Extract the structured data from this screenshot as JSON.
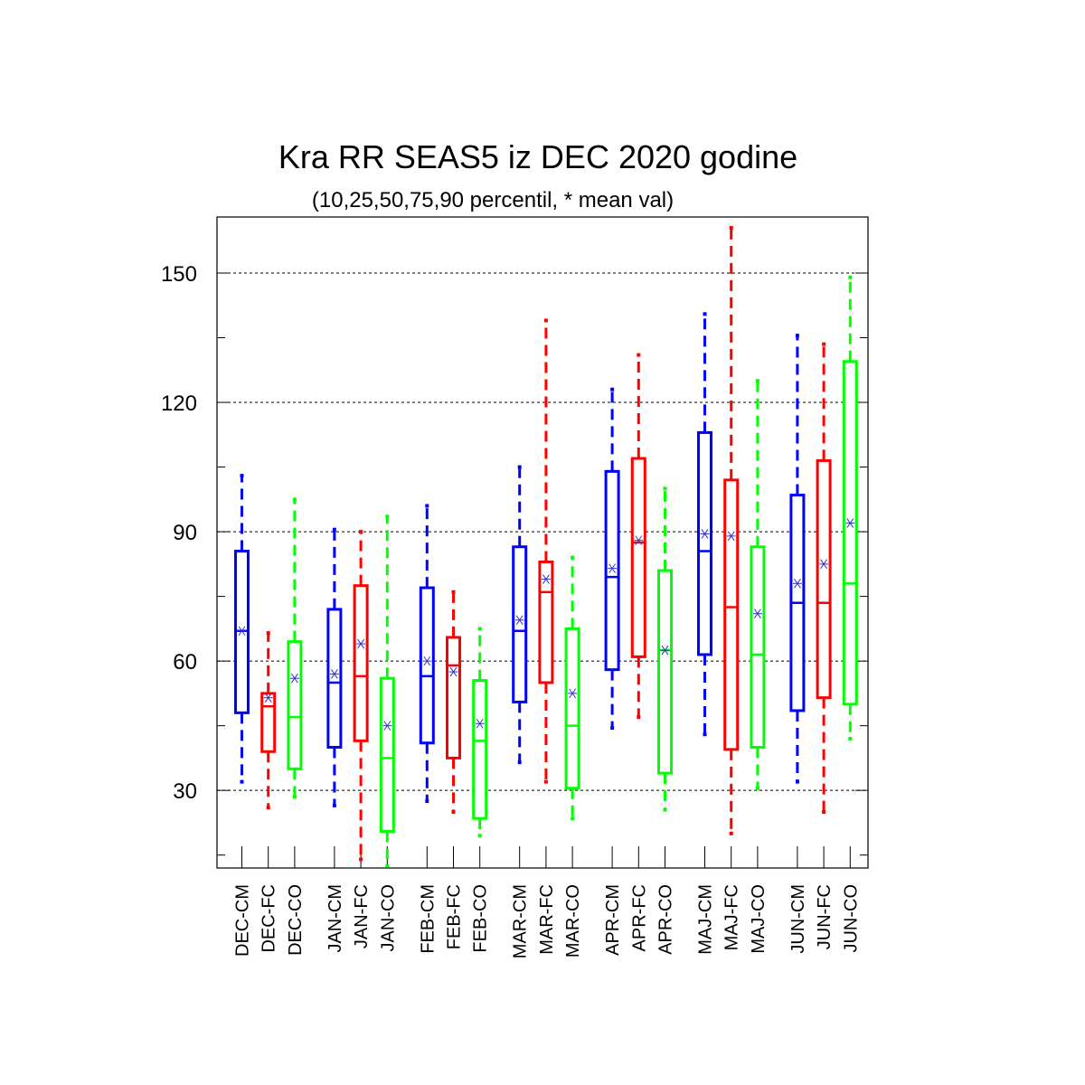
{
  "chart_data": {
    "type": "box",
    "title": "Kra RR SEAS5 iz DEC 2020 godine",
    "subtitle": "(10,25,50,75,90 percentil, * mean val)",
    "xlabel": "",
    "ylabel": "",
    "ylim": [
      12,
      163
    ],
    "yticks": [
      30,
      60,
      90,
      120,
      150
    ],
    "grid": "horizontal dashed at major ticks",
    "colors": {
      "CM": "#0000ff",
      "FC": "#ff0000",
      "CO": "#00ff00",
      "mean_marker": "#3333cc"
    },
    "boxes": [
      {
        "label": "DEC-CM",
        "type": "CM",
        "p10": 32,
        "p25": 48,
        "median": 67,
        "p75": 85.5,
        "p90": 103,
        "mean": 67
      },
      {
        "label": "DEC-FC",
        "type": "FC",
        "p10": 26,
        "p25": 39,
        "median": 49.5,
        "p75": 52.5,
        "p90": 66.5,
        "mean": 51.5
      },
      {
        "label": "DEC-CO",
        "type": "CO",
        "p10": 28.5,
        "p25": 35,
        "median": 47,
        "p75": 64.5,
        "p90": 97.5,
        "mean": 56
      },
      {
        "label": "JAN-CM",
        "type": "CM",
        "p10": 26.5,
        "p25": 40,
        "median": 55,
        "p75": 72,
        "p90": 90.5,
        "mean": 57
      },
      {
        "label": "JAN-FC",
        "type": "FC",
        "p10": 14,
        "p25": 41.5,
        "median": 56.5,
        "p75": 77.5,
        "p90": 90,
        "mean": 64
      },
      {
        "label": "JAN-CO",
        "type": "CO",
        "p10": 12.5,
        "p25": 20.5,
        "median": 37.5,
        "p75": 56,
        "p90": 93.5,
        "mean": 45
      },
      {
        "label": "FEB-CM",
        "type": "CM",
        "p10": 27.5,
        "p25": 41,
        "median": 56.5,
        "p75": 77,
        "p90": 96,
        "mean": 60
      },
      {
        "label": "FEB-FC",
        "type": "FC",
        "p10": 25,
        "p25": 37.5,
        "median": 59,
        "p75": 65.5,
        "p90": 76,
        "mean": 57.5
      },
      {
        "label": "FEB-CO",
        "type": "CO",
        "p10": 19.5,
        "p25": 23.5,
        "median": 41.5,
        "p75": 55.5,
        "p90": 67.5,
        "mean": 45.5
      },
      {
        "label": "MAR-CM",
        "type": "CM",
        "p10": 36.5,
        "p25": 50.5,
        "median": 67,
        "p75": 86.5,
        "p90": 105,
        "mean": 69.5
      },
      {
        "label": "MAR-FC",
        "type": "FC",
        "p10": 32,
        "p25": 55,
        "median": 76,
        "p75": 83,
        "p90": 139,
        "mean": 79
      },
      {
        "label": "MAR-CO",
        "type": "CO",
        "p10": 23.5,
        "p25": 30.5,
        "median": 45,
        "p75": 67.5,
        "p90": 84,
        "mean": 52.5
      },
      {
        "label": "APR-CM",
        "type": "CM",
        "p10": 44.5,
        "p25": 58,
        "median": 79.5,
        "p75": 104,
        "p90": 123,
        "mean": 81.5
      },
      {
        "label": "APR-FC",
        "type": "FC",
        "p10": 47,
        "p25": 61,
        "median": 87.5,
        "p75": 107,
        "p90": 131,
        "mean": 88
      },
      {
        "label": "APR-CO",
        "type": "CO",
        "p10": 25.5,
        "p25": 34,
        "median": 62.5,
        "p75": 81,
        "p90": 100,
        "mean": 62.5
      },
      {
        "label": "MAJ-CM",
        "type": "CM",
        "p10": 43,
        "p25": 61.5,
        "median": 85.5,
        "p75": 113,
        "p90": 140.5,
        "mean": 89.5
      },
      {
        "label": "MAJ-FC",
        "type": "FC",
        "p10": 20,
        "p25": 39.5,
        "median": 72.5,
        "p75": 102,
        "p90": 160.5,
        "mean": 89
      },
      {
        "label": "MAJ-CO",
        "type": "CO",
        "p10": 30.5,
        "p25": 40,
        "median": 61.5,
        "p75": 86.5,
        "p90": 125,
        "mean": 71
      },
      {
        "label": "JUN-CM",
        "type": "CM",
        "p10": 32,
        "p25": 48.5,
        "median": 73.5,
        "p75": 98.5,
        "p90": 135.5,
        "mean": 78
      },
      {
        "label": "JUN-FC",
        "type": "FC",
        "p10": 25,
        "p25": 51.5,
        "median": 73.5,
        "p75": 106.5,
        "p90": 133.5,
        "mean": 82.5
      },
      {
        "label": "JUN-CO",
        "type": "CO",
        "p10": 42,
        "p25": 50,
        "median": 78,
        "p75": 129.5,
        "p90": 149,
        "mean": 92
      }
    ]
  }
}
